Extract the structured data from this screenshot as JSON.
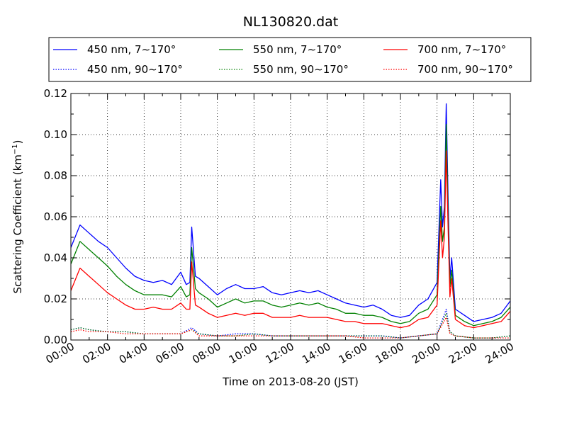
{
  "chart_data": {
    "type": "line",
    "title": "NL130820.dat",
    "xlabel": "Time on 2013-08-20 (JST)",
    "ylabel": "Scattering Coefficient (km",
    "ylabel_sup": "−1",
    "ylabel_close": ")",
    "xlim": [
      0,
      24
    ],
    "ylim": [
      0,
      0.12
    ],
    "grid": true,
    "legend_position": "top",
    "x_unit": "hour",
    "x_tick_labels": [
      "00:00",
      "02:00",
      "04:00",
      "06:00",
      "08:00",
      "10:00",
      "12:00",
      "14:00",
      "16:00",
      "18:00",
      "20:00",
      "22:00",
      "24:00"
    ],
    "y_ticks": [
      0.0,
      0.02,
      0.04,
      0.06,
      0.08,
      0.1,
      0.12
    ],
    "y_tick_labels": [
      "0.00",
      "0.02",
      "0.04",
      "0.06",
      "0.08",
      "0.10",
      "0.12"
    ],
    "series": [
      {
        "name": "450 nm, 7∼170°",
        "color": "#0000ff",
        "style": "solid",
        "x": [
          0,
          0.5,
          1,
          1.5,
          2,
          2.5,
          3,
          3.5,
          4,
          4.5,
          5,
          5.5,
          6,
          6.3,
          6.5,
          6.6,
          6.8,
          7,
          7.5,
          8,
          8.5,
          9,
          9.5,
          10,
          10.5,
          11,
          11.5,
          12,
          12.5,
          13,
          13.5,
          14,
          14.5,
          15,
          15.5,
          16,
          16.5,
          17,
          17.5,
          18,
          18.5,
          19,
          19.5,
          20,
          20.2,
          20.3,
          20.4,
          20.5,
          20.6,
          20.7,
          20.8,
          21,
          21.5,
          22,
          22.5,
          23,
          23.5,
          24
        ],
        "y": [
          0.045,
          0.056,
          0.052,
          0.048,
          0.045,
          0.04,
          0.035,
          0.031,
          0.029,
          0.028,
          0.029,
          0.027,
          0.033,
          0.027,
          0.028,
          0.055,
          0.031,
          0.03,
          0.026,
          0.022,
          0.025,
          0.027,
          0.025,
          0.025,
          0.026,
          0.023,
          0.022,
          0.023,
          0.024,
          0.023,
          0.024,
          0.022,
          0.02,
          0.018,
          0.017,
          0.016,
          0.017,
          0.015,
          0.012,
          0.011,
          0.012,
          0.017,
          0.02,
          0.028,
          0.078,
          0.055,
          0.065,
          0.115,
          0.07,
          0.03,
          0.04,
          0.015,
          0.012,
          0.009,
          0.01,
          0.011,
          0.013,
          0.019
        ]
      },
      {
        "name": "450 nm, 90∼170°",
        "color": "#0000ff",
        "style": "dotted",
        "x": [
          0,
          0.5,
          1,
          2,
          3,
          4,
          5,
          6,
          6.6,
          7,
          8,
          9,
          10,
          11,
          12,
          13,
          14,
          15,
          16,
          17,
          18,
          19,
          20,
          20.5,
          20.7,
          21,
          22,
          23,
          24
        ],
        "y": [
          0.005,
          0.006,
          0.005,
          0.004,
          0.004,
          0.003,
          0.003,
          0.003,
          0.006,
          0.003,
          0.002,
          0.003,
          0.003,
          0.002,
          0.002,
          0.002,
          0.002,
          0.002,
          0.002,
          0.002,
          0.001,
          0.002,
          0.003,
          0.015,
          0.004,
          0.002,
          0.001,
          0.001,
          0.002
        ]
      },
      {
        "name": "550 nm, 7∼170°",
        "color": "#008000",
        "style": "solid",
        "x": [
          0,
          0.5,
          1,
          1.5,
          2,
          2.5,
          3,
          3.5,
          4,
          4.5,
          5,
          5.5,
          6,
          6.3,
          6.5,
          6.6,
          6.8,
          7,
          7.5,
          8,
          8.5,
          9,
          9.5,
          10,
          10.5,
          11,
          11.5,
          12,
          12.5,
          13,
          13.5,
          14,
          14.5,
          15,
          15.5,
          16,
          16.5,
          17,
          17.5,
          18,
          18.5,
          19,
          19.5,
          20,
          20.2,
          20.3,
          20.4,
          20.5,
          20.6,
          20.7,
          20.8,
          21,
          21.5,
          22,
          22.5,
          23,
          23.5,
          24
        ],
        "y": [
          0.037,
          0.048,
          0.044,
          0.04,
          0.036,
          0.031,
          0.027,
          0.024,
          0.022,
          0.022,
          0.022,
          0.021,
          0.026,
          0.021,
          0.022,
          0.045,
          0.025,
          0.023,
          0.02,
          0.016,
          0.018,
          0.02,
          0.018,
          0.019,
          0.019,
          0.017,
          0.016,
          0.017,
          0.018,
          0.017,
          0.018,
          0.016,
          0.015,
          0.013,
          0.013,
          0.012,
          0.012,
          0.011,
          0.009,
          0.008,
          0.009,
          0.013,
          0.015,
          0.022,
          0.065,
          0.048,
          0.055,
          0.105,
          0.062,
          0.026,
          0.034,
          0.012,
          0.009,
          0.007,
          0.008,
          0.009,
          0.011,
          0.016
        ]
      },
      {
        "name": "550 nm, 90∼170°",
        "color": "#008000",
        "style": "dotted",
        "x": [
          0,
          0.5,
          1,
          2,
          3,
          4,
          5,
          6,
          6.6,
          7,
          8,
          9,
          10,
          11,
          12,
          13,
          14,
          15,
          16,
          17,
          18,
          19,
          20,
          20.5,
          20.7,
          21,
          22,
          23,
          24
        ],
        "y": [
          0.005,
          0.006,
          0.005,
          0.004,
          0.004,
          0.003,
          0.003,
          0.003,
          0.005,
          0.003,
          0.002,
          0.002,
          0.003,
          0.002,
          0.002,
          0.002,
          0.002,
          0.002,
          0.002,
          0.002,
          0.001,
          0.002,
          0.003,
          0.013,
          0.004,
          0.002,
          0.001,
          0.001,
          0.002
        ]
      },
      {
        "name": "700 nm, 7∼170°",
        "color": "#ff0000",
        "style": "solid",
        "x": [
          0,
          0.5,
          1,
          1.5,
          2,
          2.5,
          3,
          3.5,
          4,
          4.5,
          5,
          5.5,
          6,
          6.3,
          6.5,
          6.6,
          6.8,
          7,
          7.5,
          8,
          8.5,
          9,
          9.5,
          10,
          10.5,
          11,
          11.5,
          12,
          12.5,
          13,
          13.5,
          14,
          14.5,
          15,
          15.5,
          16,
          16.5,
          17,
          17.5,
          18,
          18.5,
          19,
          19.5,
          20,
          20.2,
          20.3,
          20.4,
          20.5,
          20.6,
          20.7,
          20.8,
          21,
          21.5,
          22,
          22.5,
          23,
          23.5,
          24
        ],
        "y": [
          0.024,
          0.035,
          0.031,
          0.027,
          0.023,
          0.02,
          0.017,
          0.015,
          0.015,
          0.016,
          0.015,
          0.015,
          0.018,
          0.015,
          0.015,
          0.038,
          0.017,
          0.016,
          0.013,
          0.011,
          0.012,
          0.013,
          0.012,
          0.013,
          0.013,
          0.011,
          0.011,
          0.011,
          0.012,
          0.011,
          0.011,
          0.011,
          0.01,
          0.009,
          0.009,
          0.008,
          0.008,
          0.008,
          0.007,
          0.006,
          0.007,
          0.01,
          0.011,
          0.017,
          0.058,
          0.04,
          0.05,
          0.092,
          0.055,
          0.021,
          0.03,
          0.01,
          0.007,
          0.006,
          0.007,
          0.008,
          0.009,
          0.014
        ]
      },
      {
        "name": "700 nm, 90∼170°",
        "color": "#ff0000",
        "style": "dotted",
        "x": [
          0,
          0.5,
          1,
          2,
          3,
          4,
          5,
          6,
          6.6,
          7,
          8,
          9,
          10,
          11,
          12,
          13,
          14,
          15,
          16,
          17,
          18,
          19,
          20,
          20.5,
          20.7,
          21,
          22,
          23,
          24
        ],
        "y": [
          0.004,
          0.005,
          0.004,
          0.004,
          0.003,
          0.003,
          0.003,
          0.003,
          0.005,
          0.002,
          0.002,
          0.002,
          0.002,
          0.002,
          0.002,
          0.002,
          0.002,
          0.002,
          0.001,
          0.001,
          0.001,
          0.002,
          0.003,
          0.011,
          0.003,
          0.002,
          0.001,
          0.001,
          0.001
        ]
      }
    ]
  }
}
